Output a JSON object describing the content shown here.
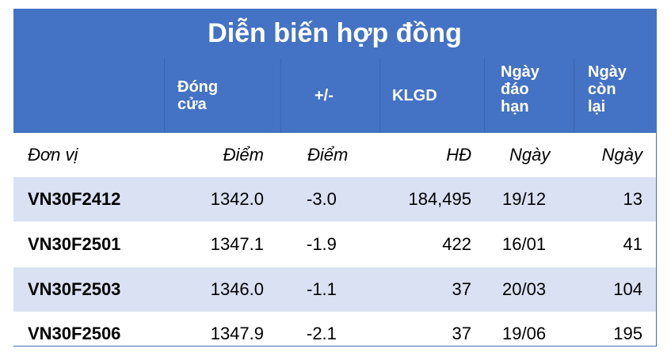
{
  "title": "Diễn biến hợp đồng",
  "headers": {
    "close": [
      "Đóng",
      "cửa"
    ],
    "change": "+/-",
    "volume": "KLGD",
    "expiry": [
      "Ngày",
      "đáo",
      "hạn"
    ],
    "days_left": [
      "Ngày",
      "còn",
      "lại"
    ]
  },
  "units": {
    "name": "Đơn vị",
    "close": "Điểm",
    "change": "Điểm",
    "volume": "HĐ",
    "expiry": "Ngày",
    "days_left": "Ngày"
  },
  "rows": [
    {
      "name": "VN30F2412",
      "close": "1342.0",
      "change": "-3.0",
      "volume": "184,495",
      "expiry": "19/12",
      "days_left": "13"
    },
    {
      "name": "VN30F2501",
      "close": "1347.1",
      "change": "-1.9",
      "volume": "422",
      "expiry": "16/01",
      "days_left": "41"
    },
    {
      "name": "VN30F2503",
      "close": "1346.0",
      "change": "-1.1",
      "volume": "37",
      "expiry": "20/03",
      "days_left": "104"
    },
    {
      "name": "VN30F2506",
      "close": "1347.9",
      "change": "-2.1",
      "volume": "37",
      "expiry": "19/06",
      "days_left": "195"
    }
  ],
  "colors": {
    "header_bg": "#4472c4",
    "shaded_row": "#d9e1f2",
    "text": "#000000",
    "header_text": "#ffffff"
  }
}
